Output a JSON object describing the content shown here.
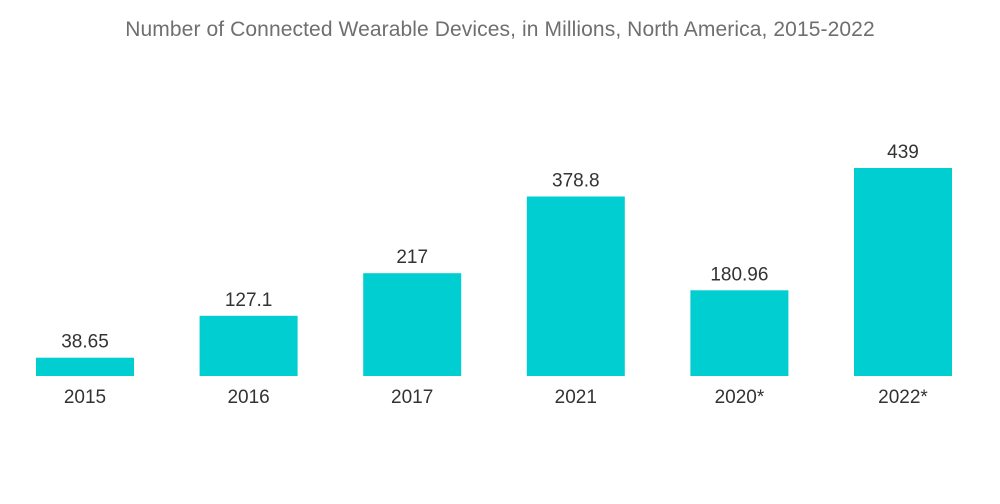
{
  "chart_data": {
    "type": "bar",
    "title": "Number of Connected Wearable Devices, in Millions, North America, 2015-2022",
    "categories": [
      "2015",
      "2016",
      "2017",
      "2021",
      "2020*",
      "2022*"
    ],
    "values": [
      38.65,
      127.1,
      217,
      378.8,
      180.96,
      439
    ],
    "value_labels": [
      "38.65",
      "127.1",
      "217",
      "378.8",
      "180.96",
      "439"
    ],
    "xlabel": "",
    "ylabel": "",
    "ylim": [
      0,
      439
    ],
    "grid": false,
    "legend": "none",
    "colors": {
      "bar": "#00ced1",
      "text": "#333333",
      "title": "#6f6f6f"
    }
  }
}
